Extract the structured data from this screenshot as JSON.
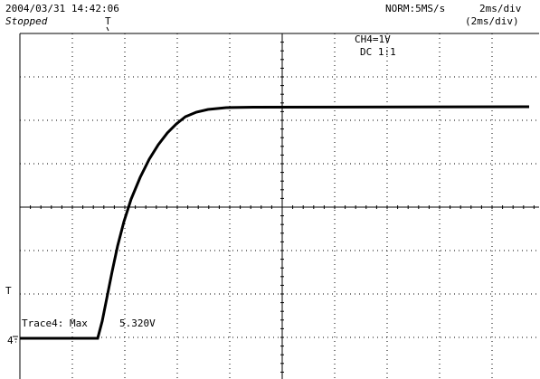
{
  "header": {
    "datetime": "2004/03/31  14:42:06",
    "status": "Stopped",
    "acquisition": "NORM:5MS/s",
    "timebase": "2ms/div",
    "timebase_sub": "(2ms/div)"
  },
  "channel": {
    "scale": "CH4=1V",
    "coupling": "DC  1:1"
  },
  "markers": {
    "trigger": "T",
    "trigger_level": "T",
    "channel_ground": "4"
  },
  "measurement": {
    "label": "Trace4: Max",
    "value": "5.320V"
  }
}
